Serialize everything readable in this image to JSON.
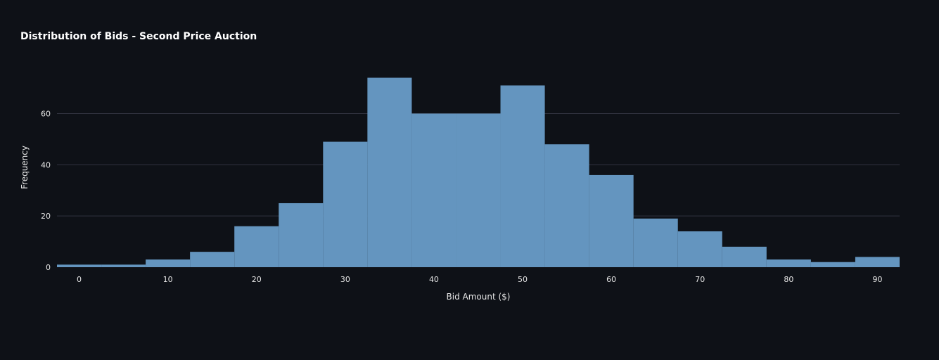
{
  "chart_data": {
    "type": "bar",
    "title": "Distribution of Bids - Second Price Auction",
    "xlabel": "Bid Amount ($)",
    "ylabel": "Frequency",
    "bin_width": 5,
    "bin_starts": [
      -2.5,
      2.5,
      7.5,
      12.5,
      17.5,
      22.5,
      27.5,
      32.5,
      37.5,
      42.5,
      47.5,
      52.5,
      57.5,
      62.5,
      67.5,
      72.5,
      77.5,
      82.5,
      87.5
    ],
    "values": [
      1,
      1,
      3,
      6,
      16,
      25,
      49,
      74,
      60,
      60,
      71,
      48,
      36,
      19,
      14,
      8,
      3,
      2,
      4
    ],
    "xlim": [
      -2.5,
      92.5
    ],
    "ylim": [
      0,
      78
    ],
    "x_ticks": [
      0,
      10,
      20,
      30,
      40,
      50,
      60,
      70,
      80,
      90
    ],
    "y_ticks": [
      0,
      20,
      40,
      60
    ],
    "grid": true,
    "bar_color": "#6495bf",
    "background_color": "#0e1117",
    "grid_color": "#31333f"
  }
}
